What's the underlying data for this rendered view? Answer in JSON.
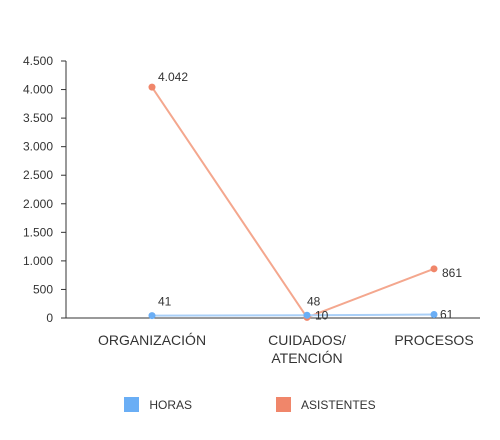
{
  "chart_data": {
    "type": "line",
    "categories": [
      "ORGANIZACIÓN",
      "CUIDADOS/\nATENCIÓN",
      "PROCESOS"
    ],
    "series": [
      {
        "name": "HORAS",
        "values": [
          41,
          48,
          61
        ],
        "color": "#6aaef5",
        "labels": [
          "41",
          "48",
          "61"
        ]
      },
      {
        "name": "ASISTENTES",
        "values": [
          4042,
          10,
          861
        ],
        "color": "#f0866a",
        "labels": [
          "4.042",
          "10",
          "861"
        ]
      }
    ],
    "ylim": [
      0,
      4500
    ],
    "yticks": [
      0,
      500,
      1000,
      1500,
      2000,
      2500,
      3000,
      3500,
      4000,
      4500
    ],
    "ytick_labels": [
      "0",
      "500",
      "1.000",
      "1.500",
      "2.000",
      "2.500",
      "3.000",
      "3.500",
      "4.000",
      "4.500"
    ],
    "line_colors": [
      "#f4a78e",
      "#a9cff7"
    ],
    "legend_position": "bottom",
    "grid": false
  }
}
